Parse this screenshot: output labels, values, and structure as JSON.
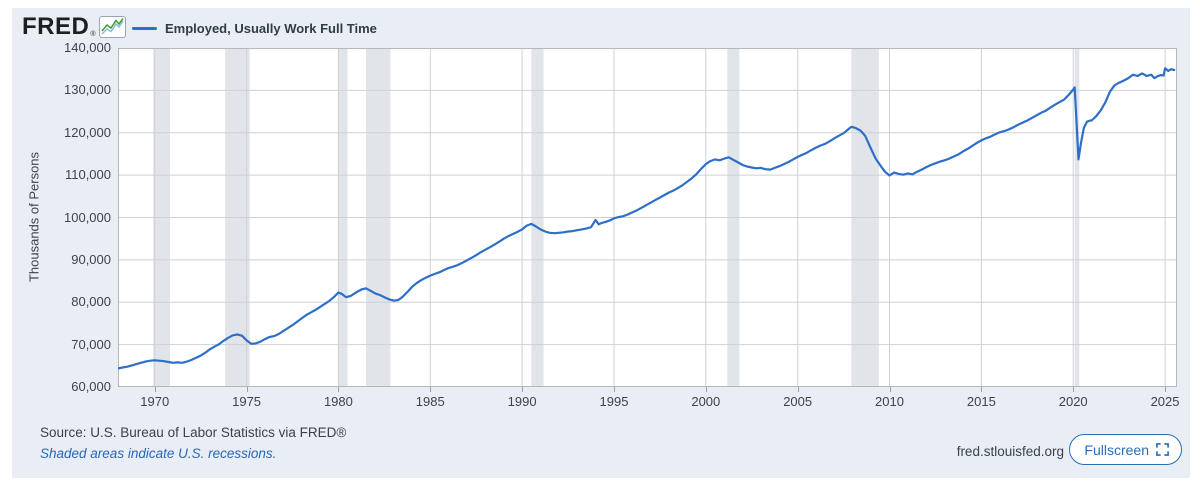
{
  "header": {
    "logo_text": "FRED",
    "registered_mark": "®",
    "legend_label": "Employed, Usually Work Full Time"
  },
  "footer": {
    "source_text": "Source: U.S. Bureau of Labor Statistics via FRED®",
    "recession_note": "Shaded areas indicate U.S. recessions.",
    "site_url": "fred.stlouisfed.org",
    "fullscreen_label": "Fullscreen"
  },
  "chart_data": {
    "type": "line",
    "title": "Employed, Usually Work Full Time",
    "xlabel": "",
    "ylabel": "Thousands of Persons",
    "units": "Thousands of Persons",
    "xlim": [
      1968.0,
      2025.65
    ],
    "ylim": [
      60000,
      140000
    ],
    "y_ticks": [
      60000,
      70000,
      80000,
      90000,
      100000,
      110000,
      120000,
      130000,
      140000
    ],
    "x_ticks": [
      1970,
      1975,
      1980,
      1985,
      1990,
      1995,
      2000,
      2005,
      2010,
      2015,
      2020,
      2025
    ],
    "grid": true,
    "legend_position": "top-left",
    "recessions": [
      [
        1969.92,
        1970.83
      ],
      [
        1973.83,
        1975.17
      ],
      [
        1980.0,
        1980.5
      ],
      [
        1981.5,
        1982.83
      ],
      [
        1990.5,
        1991.17
      ],
      [
        2001.17,
        2001.83
      ],
      [
        2007.92,
        2009.42
      ],
      [
        2020.08,
        2020.33
      ]
    ],
    "colors": {
      "line": "#2d6fc8",
      "recession_band": "#e1e4e8",
      "gridline": "#cdd1d5",
      "plot_border": "#b3b8bc",
      "panel_background": "#e8eef4",
      "plot_background": "#ffffff",
      "accent_blue": "#2b6cb8",
      "logo_green": "#3f9c35"
    },
    "series": [
      {
        "name": "Employed, Usually Work Full Time",
        "color": "#2d6fc8",
        "points": [
          [
            1968.0,
            64400
          ],
          [
            1968.25,
            64600
          ],
          [
            1968.5,
            64800
          ],
          [
            1968.75,
            65100
          ],
          [
            1969.0,
            65400
          ],
          [
            1969.25,
            65700
          ],
          [
            1969.5,
            66000
          ],
          [
            1969.75,
            66200
          ],
          [
            1970.0,
            66300
          ],
          [
            1970.25,
            66200
          ],
          [
            1970.5,
            66100
          ],
          [
            1970.75,
            65900
          ],
          [
            1971.0,
            65700
          ],
          [
            1971.25,
            65800
          ],
          [
            1971.5,
            65700
          ],
          [
            1971.75,
            66000
          ],
          [
            1972.0,
            66400
          ],
          [
            1972.25,
            66900
          ],
          [
            1972.5,
            67400
          ],
          [
            1972.75,
            68100
          ],
          [
            1973.0,
            68900
          ],
          [
            1973.25,
            69500
          ],
          [
            1973.5,
            70100
          ],
          [
            1973.75,
            70900
          ],
          [
            1974.0,
            71600
          ],
          [
            1974.25,
            72200
          ],
          [
            1974.5,
            72400
          ],
          [
            1974.75,
            72100
          ],
          [
            1975.0,
            71000
          ],
          [
            1975.25,
            70200
          ],
          [
            1975.5,
            70300
          ],
          [
            1975.75,
            70700
          ],
          [
            1976.0,
            71300
          ],
          [
            1976.25,
            71800
          ],
          [
            1976.5,
            72000
          ],
          [
            1976.75,
            72500
          ],
          [
            1977.0,
            73200
          ],
          [
            1977.25,
            73900
          ],
          [
            1977.5,
            74600
          ],
          [
            1977.75,
            75400
          ],
          [
            1978.0,
            76200
          ],
          [
            1978.25,
            77000
          ],
          [
            1978.5,
            77600
          ],
          [
            1978.75,
            78200
          ],
          [
            1979.0,
            78900
          ],
          [
            1979.25,
            79600
          ],
          [
            1979.5,
            80300
          ],
          [
            1979.75,
            81200
          ],
          [
            1980.0,
            82300
          ],
          [
            1980.17,
            82000
          ],
          [
            1980.42,
            81200
          ],
          [
            1980.67,
            81500
          ],
          [
            1981.0,
            82400
          ],
          [
            1981.25,
            83000
          ],
          [
            1981.5,
            83300
          ],
          [
            1981.75,
            82700
          ],
          [
            1982.0,
            82100
          ],
          [
            1982.25,
            81700
          ],
          [
            1982.5,
            81200
          ],
          [
            1982.75,
            80700
          ],
          [
            1983.0,
            80400
          ],
          [
            1983.25,
            80500
          ],
          [
            1983.5,
            81300
          ],
          [
            1983.75,
            82400
          ],
          [
            1984.0,
            83600
          ],
          [
            1984.25,
            84500
          ],
          [
            1984.5,
            85200
          ],
          [
            1984.75,
            85800
          ],
          [
            1985.0,
            86300
          ],
          [
            1985.25,
            86700
          ],
          [
            1985.5,
            87100
          ],
          [
            1985.75,
            87600
          ],
          [
            1986.0,
            88100
          ],
          [
            1986.25,
            88400
          ],
          [
            1986.5,
            88800
          ],
          [
            1986.75,
            89300
          ],
          [
            1987.0,
            89900
          ],
          [
            1987.25,
            90500
          ],
          [
            1987.5,
            91100
          ],
          [
            1987.75,
            91800
          ],
          [
            1988.0,
            92400
          ],
          [
            1988.25,
            93000
          ],
          [
            1988.5,
            93600
          ],
          [
            1988.75,
            94300
          ],
          [
            1989.0,
            95000
          ],
          [
            1989.25,
            95600
          ],
          [
            1989.5,
            96100
          ],
          [
            1989.75,
            96600
          ],
          [
            1990.0,
            97200
          ],
          [
            1990.25,
            98100
          ],
          [
            1990.5,
            98500
          ],
          [
            1990.75,
            97900
          ],
          [
            1991.0,
            97200
          ],
          [
            1991.25,
            96700
          ],
          [
            1991.5,
            96400
          ],
          [
            1991.75,
            96300
          ],
          [
            1992.0,
            96400
          ],
          [
            1992.25,
            96500
          ],
          [
            1992.5,
            96700
          ],
          [
            1992.75,
            96800
          ],
          [
            1993.0,
            97000
          ],
          [
            1993.25,
            97200
          ],
          [
            1993.5,
            97400
          ],
          [
            1993.75,
            97700
          ],
          [
            1994.0,
            99400
          ],
          [
            1994.17,
            98400
          ],
          [
            1994.33,
            98700
          ],
          [
            1994.58,
            99000
          ],
          [
            1994.83,
            99400
          ],
          [
            1995.0,
            99800
          ],
          [
            1995.25,
            100100
          ],
          [
            1995.5,
            100300
          ],
          [
            1995.75,
            100700
          ],
          [
            1996.0,
            101200
          ],
          [
            1996.25,
            101700
          ],
          [
            1996.5,
            102300
          ],
          [
            1996.75,
            102900
          ],
          [
            1997.0,
            103500
          ],
          [
            1997.25,
            104100
          ],
          [
            1997.5,
            104700
          ],
          [
            1997.75,
            105300
          ],
          [
            1998.0,
            105900
          ],
          [
            1998.25,
            106400
          ],
          [
            1998.5,
            107000
          ],
          [
            1998.75,
            107700
          ],
          [
            1999.0,
            108500
          ],
          [
            1999.25,
            109300
          ],
          [
            1999.5,
            110300
          ],
          [
            1999.75,
            111500
          ],
          [
            2000.0,
            112600
          ],
          [
            2000.25,
            113300
          ],
          [
            2000.5,
            113700
          ],
          [
            2000.75,
            113500
          ],
          [
            2001.0,
            113900
          ],
          [
            2001.25,
            114200
          ],
          [
            2001.5,
            113600
          ],
          [
            2001.75,
            113000
          ],
          [
            2002.0,
            112400
          ],
          [
            2002.25,
            112000
          ],
          [
            2002.5,
            111800
          ],
          [
            2002.75,
            111600
          ],
          [
            2003.0,
            111700
          ],
          [
            2003.25,
            111400
          ],
          [
            2003.5,
            111300
          ],
          [
            2003.75,
            111700
          ],
          [
            2004.0,
            112100
          ],
          [
            2004.25,
            112600
          ],
          [
            2004.5,
            113100
          ],
          [
            2004.75,
            113700
          ],
          [
            2005.0,
            114300
          ],
          [
            2005.25,
            114800
          ],
          [
            2005.5,
            115300
          ],
          [
            2005.75,
            115900
          ],
          [
            2006.0,
            116500
          ],
          [
            2006.25,
            117000
          ],
          [
            2006.5,
            117400
          ],
          [
            2006.75,
            118000
          ],
          [
            2007.0,
            118700
          ],
          [
            2007.25,
            119300
          ],
          [
            2007.5,
            119900
          ],
          [
            2007.75,
            120800
          ],
          [
            2007.92,
            121400
          ],
          [
            2008.17,
            121100
          ],
          [
            2008.42,
            120500
          ],
          [
            2008.67,
            119300
          ],
          [
            2009.0,
            116200
          ],
          [
            2009.25,
            113900
          ],
          [
            2009.5,
            112300
          ],
          [
            2009.75,
            110800
          ],
          [
            2010.0,
            109900
          ],
          [
            2010.25,
            110600
          ],
          [
            2010.5,
            110300
          ],
          [
            2010.75,
            110100
          ],
          [
            2011.0,
            110400
          ],
          [
            2011.25,
            110200
          ],
          [
            2011.5,
            110800
          ],
          [
            2011.75,
            111300
          ],
          [
            2012.0,
            111900
          ],
          [
            2012.25,
            112400
          ],
          [
            2012.5,
            112800
          ],
          [
            2012.75,
            113200
          ],
          [
            2013.0,
            113500
          ],
          [
            2013.25,
            113900
          ],
          [
            2013.5,
            114400
          ],
          [
            2013.75,
            114900
          ],
          [
            2014.0,
            115600
          ],
          [
            2014.25,
            116200
          ],
          [
            2014.5,
            116900
          ],
          [
            2014.75,
            117600
          ],
          [
            2015.0,
            118200
          ],
          [
            2015.25,
            118700
          ],
          [
            2015.5,
            119100
          ],
          [
            2015.75,
            119600
          ],
          [
            2016.0,
            120100
          ],
          [
            2016.25,
            120400
          ],
          [
            2016.5,
            120800
          ],
          [
            2016.75,
            121300
          ],
          [
            2017.0,
            121900
          ],
          [
            2017.25,
            122400
          ],
          [
            2017.5,
            122900
          ],
          [
            2017.75,
            123500
          ],
          [
            2018.0,
            124100
          ],
          [
            2018.25,
            124700
          ],
          [
            2018.5,
            125200
          ],
          [
            2018.75,
            125900
          ],
          [
            2019.0,
            126600
          ],
          [
            2019.25,
            127200
          ],
          [
            2019.5,
            127800
          ],
          [
            2019.75,
            128900
          ],
          [
            2020.0,
            130200
          ],
          [
            2020.08,
            130700
          ],
          [
            2020.29,
            113700
          ],
          [
            2020.42,
            117500
          ],
          [
            2020.58,
            121200
          ],
          [
            2020.75,
            122600
          ],
          [
            2020.92,
            122900
          ],
          [
            2021.0,
            122900
          ],
          [
            2021.25,
            123900
          ],
          [
            2021.5,
            125300
          ],
          [
            2021.75,
            127200
          ],
          [
            2022.0,
            129700
          ],
          [
            2022.25,
            131200
          ],
          [
            2022.5,
            131800
          ],
          [
            2022.75,
            132300
          ],
          [
            2023.0,
            132900
          ],
          [
            2023.25,
            133700
          ],
          [
            2023.5,
            133400
          ],
          [
            2023.75,
            134000
          ],
          [
            2024.0,
            133400
          ],
          [
            2024.25,
            133700
          ],
          [
            2024.42,
            132900
          ],
          [
            2024.58,
            133300
          ],
          [
            2024.75,
            133600
          ],
          [
            2024.92,
            133500
          ],
          [
            2025.0,
            135200
          ],
          [
            2025.17,
            134600
          ],
          [
            2025.33,
            135000
          ],
          [
            2025.5,
            134800
          ]
        ]
      }
    ]
  }
}
